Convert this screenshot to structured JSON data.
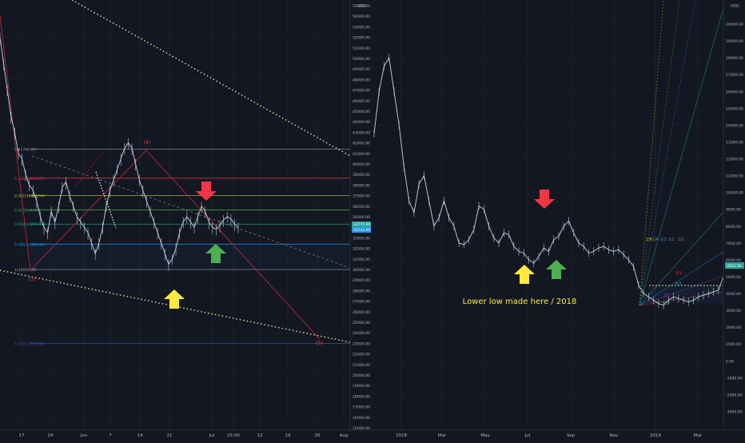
{
  "chart_data": [
    {
      "type": "line",
      "panel": "left",
      "x_ticks": [
        "17",
        "24",
        "Jun",
        "7",
        "14",
        "21",
        "Jul",
        "15:00",
        "12",
        "19",
        "26",
        "Aug"
      ],
      "y_unit": "USD",
      "y_range": [
        15000,
        55000
      ],
      "y_ticks": [
        "15000.00",
        "16000.00",
        "17000.00",
        "18000.00",
        "19000.00",
        "20000.00",
        "21000.00",
        "22000.00",
        "23000.00",
        "24000.00",
        "25000.00",
        "26000.00",
        "27000.00",
        "28000.00",
        "29000.00",
        "30000.00",
        "31000.00",
        "32000.00",
        "33000.00",
        "34000.00",
        "35000.00",
        "36000.00",
        "37000.00",
        "38000.00",
        "39000.00",
        "40000.00",
        "41000.00",
        "42000.00",
        "43000.00",
        "44000.00",
        "45000.00",
        "46000.00",
        "47000.00",
        "48000.00",
        "49000.00",
        "50000.00",
        "51000.00",
        "52000.00",
        "53000.00",
        "54000.00",
        "55000.00"
      ],
      "price_marks": [
        "33771.94",
        "33142.90"
      ],
      "fib_levels": [
        {
          "label": "0(41786.00)",
          "value": 41400,
          "color": "#9598a1"
        },
        {
          "label": "0.236(38639.67)",
          "value": 38650,
          "color": "#f23645"
        },
        {
          "label": "0.382(36998.54)",
          "value": 37000,
          "color": "#c5c82a"
        },
        {
          "label": "0.5(35646.85)",
          "value": 35650,
          "color": "#4caf50"
        },
        {
          "label": "0.618(34290.90)",
          "value": 34300,
          "color": "#22ab94"
        },
        {
          "label": "0.786(32489.96)",
          "value": 32400,
          "color": "#2196f3"
        },
        {
          "label": "1(30090.00)",
          "value": 30000,
          "color": "#9598a1"
        },
        {
          "label": "1.618(23020.00)",
          "value": 23000,
          "color": "#3f51b5"
        }
      ],
      "wave_labels": [
        "(3)",
        "(4)",
        "(5)"
      ],
      "series": [
        {
          "values": [
            52000,
            49500,
            47000,
            44500,
            43000,
            41000,
            40500,
            39000,
            38000,
            37500,
            36500,
            35000,
            34000,
            33500,
            35500,
            34500,
            36000,
            37800,
            38300,
            37000,
            36000,
            35000,
            34500,
            34000,
            33500,
            32500,
            31500,
            32500,
            34000,
            36000,
            37500,
            38500,
            39500,
            40500,
            41500,
            42000,
            41500,
            40000,
            38500,
            37500,
            36500,
            35500,
            34500,
            33500,
            32500,
            31500,
            30500,
            31000,
            32000,
            33500,
            34500,
            35000,
            34500,
            34000,
            35000,
            36000,
            35500,
            34500,
            34000,
            33800,
            34200,
            34700,
            35000,
            34800,
            34300,
            34000
          ]
        }
      ]
    },
    {
      "type": "line",
      "panel": "right",
      "x_ticks": [
        "2018",
        "Mar",
        "May",
        "Jul",
        "Sep",
        "Nov",
        "2019",
        "Mar"
      ],
      "y_unit": "USD",
      "y_range": [
        -3500,
        21000
      ],
      "y_ticks": [
        "20000.00",
        "19000.00",
        "18000.00",
        "17000.00",
        "16000.00",
        "15000.00",
        "14000.00",
        "13000.00",
        "12000.00",
        "11000.00",
        "10000.00",
        "9000.00",
        "8000.00",
        "7000.00",
        "6000.00",
        "5000.00",
        "4000.00",
        "3000.00",
        "2000.00",
        "1000.00",
        "0.00",
        "-1000.00",
        "-2000.00",
        "-3000.00"
      ],
      "price_marks": [
        "3551.56"
      ],
      "gann_labels": [
        "1/8",
        "1/4",
        "1/3",
        "1/2",
        "1/1",
        "2/1",
        "3/1",
        "4/1",
        "45°"
      ],
      "annotation": "Lower low made here / 2018",
      "series": [
        {
          "values": [
            13500,
            16000,
            17500,
            18000,
            16000,
            14000,
            11500,
            9500,
            8800,
            10500,
            11000,
            9500,
            8000,
            8500,
            9500,
            8500,
            8000,
            7000,
            6900,
            7200,
            7800,
            9200,
            9000,
            8000,
            7300,
            7000,
            7600,
            7500,
            6800,
            6500,
            6400,
            6000,
            5800,
            6200,
            6700,
            6500,
            7200,
            7400,
            8000,
            8300,
            7600,
            7000,
            6800,
            6400,
            6500,
            6700,
            6800,
            6600,
            6500,
            6600,
            6300,
            6000,
            5600,
            4500,
            4000,
            3800,
            3600,
            3400,
            3300,
            3600,
            3800,
            3700,
            3600,
            3500,
            3600,
            3800,
            3900,
            4000,
            4100,
            4200,
            5000
          ]
        }
      ]
    }
  ]
}
